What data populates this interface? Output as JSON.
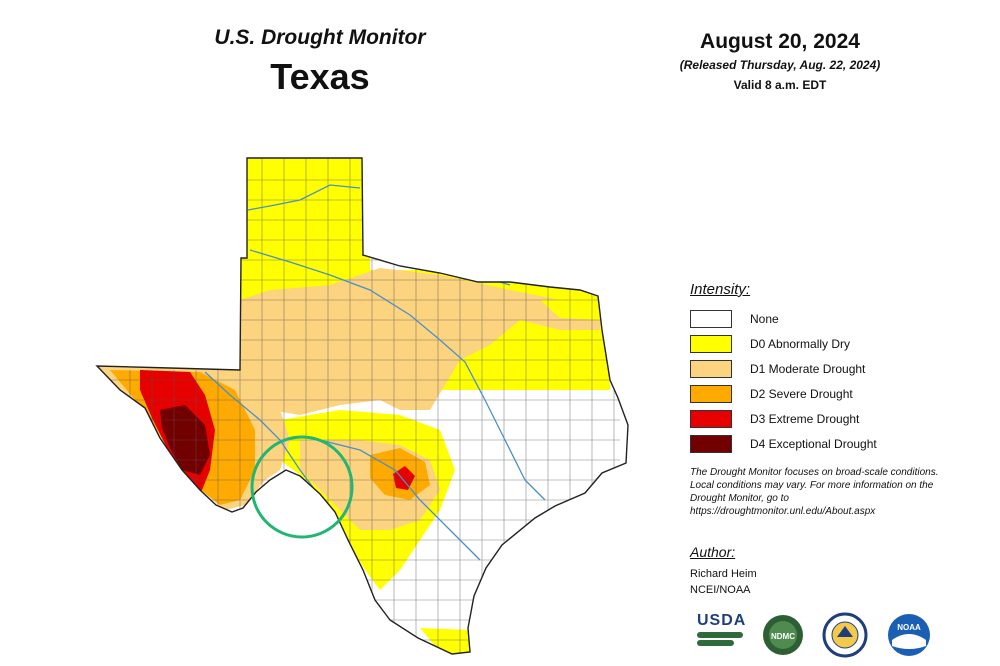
{
  "header": {
    "monitor_title": "U.S. Drought Monitor",
    "state": "Texas",
    "date": "August 20, 2024",
    "released": "(Released Thursday, Aug. 22, 2024)",
    "valid": "Valid 8 a.m. EDT"
  },
  "legend": {
    "heading": "Intensity:",
    "items": [
      {
        "label": "None",
        "color": "#ffffff"
      },
      {
        "label": "D0 Abnormally Dry",
        "color": "#ffff00"
      },
      {
        "label": "D1 Moderate Drought",
        "color": "#fcd37f"
      },
      {
        "label": "D2 Severe Drought",
        "color": "#ffaa00"
      },
      {
        "label": "D3 Extreme Drought",
        "color": "#e60000"
      },
      {
        "label": "D4 Exceptional Drought",
        "color": "#730000"
      }
    ]
  },
  "note": "The Drought Monitor focuses on broad-scale conditions. Local conditions may vary. For more information on the Drought Monitor, go to https://droughtmonitor.unl.edu/About.aspx",
  "author": {
    "heading": "Author:",
    "name": "Richard Heim",
    "org": "NCEI/NOAA"
  },
  "logos": {
    "usda": "USDA",
    "ndmc": "NDMC",
    "noaa": "NOAA"
  },
  "annotation": {
    "circle_color": "#22b573"
  },
  "map": {
    "river_color": "#4a90c8",
    "county_line_color": "#555555"
  }
}
